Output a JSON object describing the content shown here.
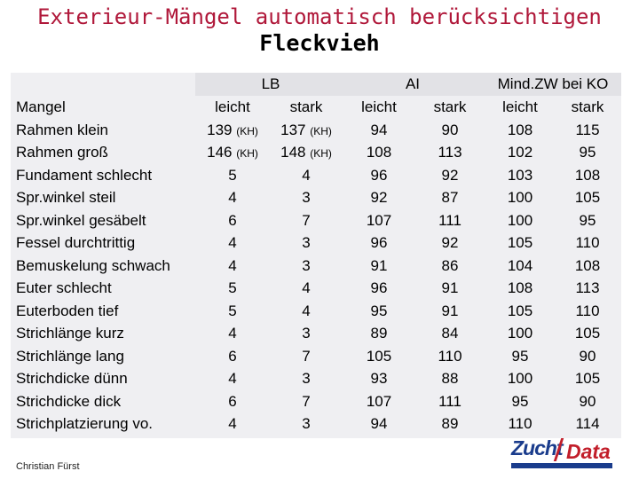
{
  "title": {
    "line1": "Exterieur-Mängel automatisch berücksichtigen",
    "line2": "Fleckvieh"
  },
  "groups": {
    "lb": "LB",
    "ai": "AI",
    "mind": "Mind.ZW bei KO"
  },
  "header_row": {
    "label": "Mangel",
    "leicht": "leicht",
    "stark": "stark"
  },
  "rows": [
    {
      "label": "Rahmen klein",
      "lb_leicht": "139",
      "lb_leicht_note": "(KH)",
      "lb_stark": "137",
      "lb_stark_note": "(KH)",
      "ai_leicht": "94",
      "ai_stark": "90",
      "m_leicht": "108",
      "m_stark": "115"
    },
    {
      "label": "Rahmen groß",
      "lb_leicht": "146",
      "lb_leicht_note": "(KH)",
      "lb_stark": "148",
      "lb_stark_note": "(KH)",
      "ai_leicht": "108",
      "ai_stark": "113",
      "m_leicht": "102",
      "m_stark": "95"
    },
    {
      "label": "Fundament schlecht",
      "lb_leicht": "5",
      "lb_stark": "4",
      "ai_leicht": "96",
      "ai_stark": "92",
      "m_leicht": "103",
      "m_stark": "108"
    },
    {
      "label": "Spr.winkel steil",
      "lb_leicht": "4",
      "lb_stark": "3",
      "ai_leicht": "92",
      "ai_stark": "87",
      "m_leicht": "100",
      "m_stark": "105"
    },
    {
      "label": "Spr.winkel gesäbelt",
      "lb_leicht": "6",
      "lb_stark": "7",
      "ai_leicht": "107",
      "ai_stark": "111",
      "m_leicht": "100",
      "m_stark": "95"
    },
    {
      "label": "Fessel durchtrittig",
      "lb_leicht": "4",
      "lb_stark": "3",
      "ai_leicht": "96",
      "ai_stark": "92",
      "m_leicht": "105",
      "m_stark": "110"
    },
    {
      "label": "Bemuskelung schwach",
      "lb_leicht": "4",
      "lb_stark": "3",
      "ai_leicht": "91",
      "ai_stark": "86",
      "m_leicht": "104",
      "m_stark": "108"
    },
    {
      "label": "Euter schlecht",
      "lb_leicht": "5",
      "lb_stark": "4",
      "ai_leicht": "96",
      "ai_stark": "91",
      "m_leicht": "108",
      "m_stark": "113"
    },
    {
      "label": "Euterboden tief",
      "lb_leicht": "5",
      "lb_stark": "4",
      "ai_leicht": "95",
      "ai_stark": "91",
      "m_leicht": "105",
      "m_stark": "110"
    },
    {
      "label": "Strichlänge kurz",
      "lb_leicht": "4",
      "lb_stark": "3",
      "ai_leicht": "89",
      "ai_stark": "84",
      "m_leicht": "100",
      "m_stark": "105"
    },
    {
      "label": "Strichlänge lang",
      "lb_leicht": "6",
      "lb_stark": "7",
      "ai_leicht": "105",
      "ai_stark": "110",
      "m_leicht": "95",
      "m_stark": "90"
    },
    {
      "label": "Strichdicke dünn",
      "lb_leicht": "4",
      "lb_stark": "3",
      "ai_leicht": "93",
      "ai_stark": "88",
      "m_leicht": "100",
      "m_stark": "105"
    },
    {
      "label": "Strichdicke dick",
      "lb_leicht": "6",
      "lb_stark": "7",
      "ai_leicht": "107",
      "ai_stark": "111",
      "m_leicht": "95",
      "m_stark": "90"
    },
    {
      "label": "Strichplatzierung vo.",
      "lb_leicht": "4",
      "lb_stark": "3",
      "ai_leicht": "94",
      "ai_stark": "89",
      "m_leicht": "110",
      "m_stark": "114"
    }
  ],
  "footer": {
    "author": "Christian Fürst"
  },
  "logo": {
    "part1": "Zucht",
    "part2": "Data"
  }
}
